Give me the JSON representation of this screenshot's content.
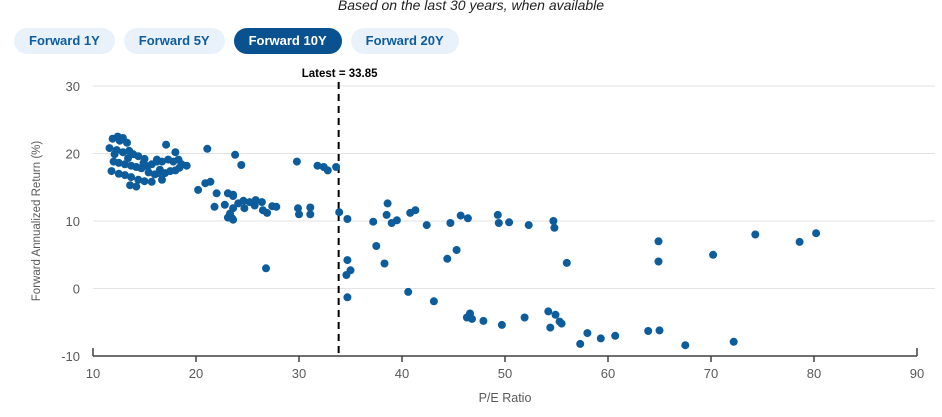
{
  "header": {
    "subtitle": "Based on the last 30 years, when available"
  },
  "tabs": {
    "items": [
      {
        "label": "Forward 1Y",
        "active": false
      },
      {
        "label": "Forward 5Y",
        "active": false
      },
      {
        "label": "Forward 10Y",
        "active": true
      },
      {
        "label": "Forward 20Y",
        "active": false
      }
    ]
  },
  "colors": {
    "dot": "#0d5c9c",
    "tab_active_bg": "#0a5190",
    "tab_inactive_bg": "#e9f2fb",
    "tab_text": "#0d5c9c",
    "grid": "#e3e3e3",
    "axis": "#404040",
    "tick_text": "#595959",
    "annotation_text": "#000000"
  },
  "chart_data": {
    "type": "scatter",
    "title": "",
    "xlabel": "P/E Ratio",
    "ylabel": "Forward Annualized Return (%)",
    "xlim": [
      10,
      90
    ],
    "ylim": [
      -10,
      30
    ],
    "x_ticks": [
      10,
      20,
      30,
      40,
      50,
      60,
      70,
      80,
      90
    ],
    "y_ticks": [
      30,
      20,
      10,
      0,
      -10
    ],
    "grid": "horizontal",
    "legend": "none",
    "annotation": {
      "label": "Latest = 33.85",
      "x": 33.85,
      "style": "dashed-vertical-line"
    },
    "series": [
      {
        "name": "Forward 10Y",
        "color": "#0d5c9c",
        "points": [
          [
            11.9,
            22.2
          ],
          [
            12.4,
            22.5
          ],
          [
            12.9,
            22.3
          ],
          [
            12.6,
            21.9
          ],
          [
            13.3,
            21.6
          ],
          [
            11.6,
            20.8
          ],
          [
            12.3,
            20.5
          ],
          [
            12.9,
            20.2
          ],
          [
            13.5,
            20.4
          ],
          [
            13.9,
            19.9
          ],
          [
            14.4,
            19.6
          ],
          [
            15.0,
            19.2
          ],
          [
            12.1,
            19.9
          ],
          [
            13.4,
            19.3
          ],
          [
            12.0,
            18.8
          ],
          [
            12.5,
            18.6
          ],
          [
            13.1,
            18.4
          ],
          [
            13.7,
            18.2
          ],
          [
            14.2,
            18.0
          ],
          [
            14.7,
            17.8
          ],
          [
            15.3,
            18.1
          ],
          [
            15.7,
            18.4
          ],
          [
            16.2,
            18.8
          ],
          [
            14.9,
            18.6
          ],
          [
            11.8,
            17.4
          ],
          [
            12.5,
            17.0
          ],
          [
            13.1,
            16.8
          ],
          [
            13.7,
            16.5
          ],
          [
            14.4,
            16.1
          ],
          [
            15.0,
            15.9
          ],
          [
            13.6,
            15.3
          ],
          [
            14.2,
            15.1
          ],
          [
            15.4,
            17.2
          ],
          [
            16.0,
            16.9
          ],
          [
            16.4,
            17.1
          ],
          [
            15.7,
            15.8
          ],
          [
            16.7,
            16.1
          ],
          [
            17.1,
            21.3
          ],
          [
            18.0,
            20.2
          ],
          [
            16.2,
            19.1
          ],
          [
            16.7,
            18.8
          ],
          [
            17.3,
            19.1
          ],
          [
            17.8,
            18.8
          ],
          [
            18.3,
            19.1
          ],
          [
            18.6,
            18.4
          ],
          [
            19.1,
            18.2
          ],
          [
            18.4,
            17.9
          ],
          [
            16.5,
            17.6
          ],
          [
            17.0,
            17.1
          ],
          [
            17.5,
            17.4
          ],
          [
            18.0,
            17.5
          ],
          [
            21.1,
            20.7
          ],
          [
            23.8,
            19.8
          ],
          [
            24.4,
            18.3
          ],
          [
            20.2,
            14.6
          ],
          [
            20.9,
            15.6
          ],
          [
            21.4,
            15.8
          ],
          [
            22.0,
            14.1
          ],
          [
            23.1,
            14.1
          ],
          [
            23.6,
            13.9
          ],
          [
            21.8,
            12.1
          ],
          [
            22.8,
            12.4
          ],
          [
            23.3,
            11.1
          ],
          [
            23.5,
            10.4
          ],
          [
            23.6,
            13.7
          ],
          [
            24.1,
            12.6
          ],
          [
            23.6,
            11.9
          ],
          [
            24.6,
            13.0
          ],
          [
            24.7,
            11.9
          ],
          [
            25.2,
            12.8
          ],
          [
            25.7,
            12.3
          ],
          [
            25.8,
            13.1
          ],
          [
            26.4,
            12.8
          ],
          [
            26.5,
            11.6
          ],
          [
            26.9,
            11.2
          ],
          [
            27.4,
            12.2
          ],
          [
            27.8,
            12.1
          ],
          [
            23.1,
            10.5
          ],
          [
            23.6,
            10.2
          ],
          [
            26.8,
            3.0
          ],
          [
            29.8,
            18.8
          ],
          [
            31.8,
            18.2
          ],
          [
            32.4,
            18.0
          ],
          [
            32.8,
            17.5
          ],
          [
            33.6,
            18.0
          ],
          [
            29.9,
            11.9
          ],
          [
            30.0,
            11.0
          ],
          [
            31.1,
            12.0
          ],
          [
            31.1,
            11.0
          ],
          [
            33.9,
            11.3
          ],
          [
            34.7,
            10.3
          ],
          [
            37.2,
            9.9
          ],
          [
            38.6,
            12.6
          ],
          [
            38.5,
            10.9
          ],
          [
            39.0,
            9.7
          ],
          [
            39.5,
            10.1
          ],
          [
            40.8,
            11.2
          ],
          [
            41.3,
            11.6
          ],
          [
            42.4,
            9.4
          ],
          [
            44.7,
            9.7
          ],
          [
            45.7,
            10.8
          ],
          [
            46.4,
            10.4
          ],
          [
            37.5,
            6.3
          ],
          [
            38.3,
            3.7
          ],
          [
            34.7,
            4.2
          ],
          [
            35.0,
            2.7
          ],
          [
            34.6,
            2.0
          ],
          [
            44.4,
            4.4
          ],
          [
            45.3,
            5.7
          ],
          [
            34.7,
            -1.3
          ],
          [
            40.6,
            -0.5
          ],
          [
            43.1,
            -1.9
          ],
          [
            49.3,
            10.9
          ],
          [
            49.4,
            9.7
          ],
          [
            50.4,
            9.8
          ],
          [
            52.3,
            9.4
          ],
          [
            54.7,
            10.0
          ],
          [
            54.8,
            9.0
          ],
          [
            46.6,
            -3.7
          ],
          [
            46.3,
            -4.3
          ],
          [
            46.8,
            -4.5
          ],
          [
            47.9,
            -4.8
          ],
          [
            49.7,
            -5.4
          ],
          [
            51.9,
            -4.3
          ],
          [
            54.2,
            -3.4
          ],
          [
            54.9,
            -3.9
          ],
          [
            55.3,
            -4.9
          ],
          [
            54.4,
            -5.8
          ],
          [
            55.5,
            -5.2
          ],
          [
            56.0,
            3.8
          ],
          [
            57.3,
            -8.2
          ],
          [
            58.0,
            -6.6
          ],
          [
            59.3,
            -7.4
          ],
          [
            60.7,
            -7.0
          ],
          [
            63.9,
            -6.3
          ],
          [
            65.0,
            -6.2
          ],
          [
            67.5,
            -8.4
          ],
          [
            64.9,
            7.0
          ],
          [
            64.9,
            4.0
          ],
          [
            70.2,
            5.0
          ],
          [
            72.2,
            -7.9
          ],
          [
            74.3,
            8.0
          ],
          [
            78.6,
            6.9
          ],
          [
            80.2,
            8.2
          ]
        ]
      }
    ]
  }
}
